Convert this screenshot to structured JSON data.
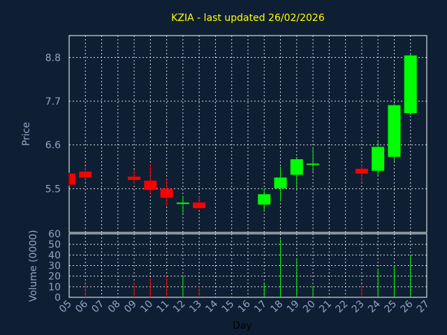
{
  "chart_data": {
    "type": "candlestick",
    "title": "KZIA - last updated 26/02/2026",
    "xlabel": "Day",
    "price_panel": {
      "ylabel": "Price",
      "yticks": [
        "5.5",
        "6.6",
        "7.7",
        "8.8"
      ],
      "ylim": [
        4.4,
        9.35
      ],
      "grid": true
    },
    "volume_panel": {
      "ylabel": "Volume (0000)",
      "yticks": [
        "0",
        "10",
        "20",
        "30",
        "40",
        "50",
        "60"
      ],
      "ylim": [
        0,
        60
      ],
      "grid": true
    },
    "x_ticks": [
      "05",
      "06",
      "07",
      "08",
      "09",
      "10",
      "11",
      "12",
      "13",
      "14",
      "15",
      "16",
      "17",
      "18",
      "19",
      "20",
      "21",
      "22",
      "23",
      "24",
      "25",
      "26",
      "27"
    ],
    "candles": [
      {
        "day": 5,
        "open": 5.88,
        "close": 5.6,
        "high": 5.9,
        "low": 5.57,
        "volume": 0
      },
      {
        "day": 6,
        "open": 5.93,
        "close": 5.78,
        "high": 6.05,
        "low": 5.68,
        "volume": 13
      },
      {
        "day": 9,
        "open": 5.8,
        "close": 5.72,
        "high": 5.98,
        "low": 5.63,
        "volume": 14
      },
      {
        "day": 10,
        "open": 5.7,
        "close": 5.47,
        "high": 6.12,
        "low": 5.35,
        "volume": 18
      },
      {
        "day": 11,
        "open": 5.5,
        "close": 5.27,
        "high": 5.74,
        "low": 5.05,
        "volume": 20
      },
      {
        "day": 12,
        "open": 5.15,
        "close": 5.15,
        "high": 5.3,
        "low": 4.88,
        "volume": 21
      },
      {
        "day": 13,
        "open": 5.15,
        "close": 5.01,
        "high": 5.32,
        "low": 5.0,
        "volume": 11
      },
      {
        "day": 17,
        "open": 5.1,
        "close": 5.36,
        "high": 5.5,
        "low": 4.94,
        "volume": 14
      },
      {
        "day": 18,
        "open": 5.51,
        "close": 5.78,
        "high": 6.05,
        "low": 5.18,
        "volume": 55
      },
      {
        "day": 19,
        "open": 5.85,
        "close": 6.24,
        "high": 6.3,
        "low": 5.5,
        "volume": 37
      },
      {
        "day": 20,
        "open": 6.13,
        "close": 6.13,
        "high": 6.55,
        "low": 5.93,
        "volume": 11
      },
      {
        "day": 23,
        "open": 6.0,
        "close": 5.88,
        "high": 6.12,
        "low": 5.65,
        "volume": 12
      },
      {
        "day": 24,
        "open": 5.95,
        "close": 6.55,
        "high": 6.67,
        "low": 5.82,
        "volume": 27
      },
      {
        "day": 25,
        "open": 6.3,
        "close": 7.6,
        "high": 7.62,
        "low": 6.2,
        "volume": 30
      },
      {
        "day": 26,
        "open": 7.4,
        "close": 8.85,
        "high": 8.9,
        "low": 7.35,
        "volume": 40
      }
    ],
    "colors": {
      "up": "#00ff00",
      "down": "#ff0000",
      "background": "#0f1f33",
      "plot_border": "#ffffff",
      "grid": "#ffffff",
      "title": "#ffff00",
      "tick": "#8fa6c7",
      "xlabel": "#000000"
    }
  }
}
